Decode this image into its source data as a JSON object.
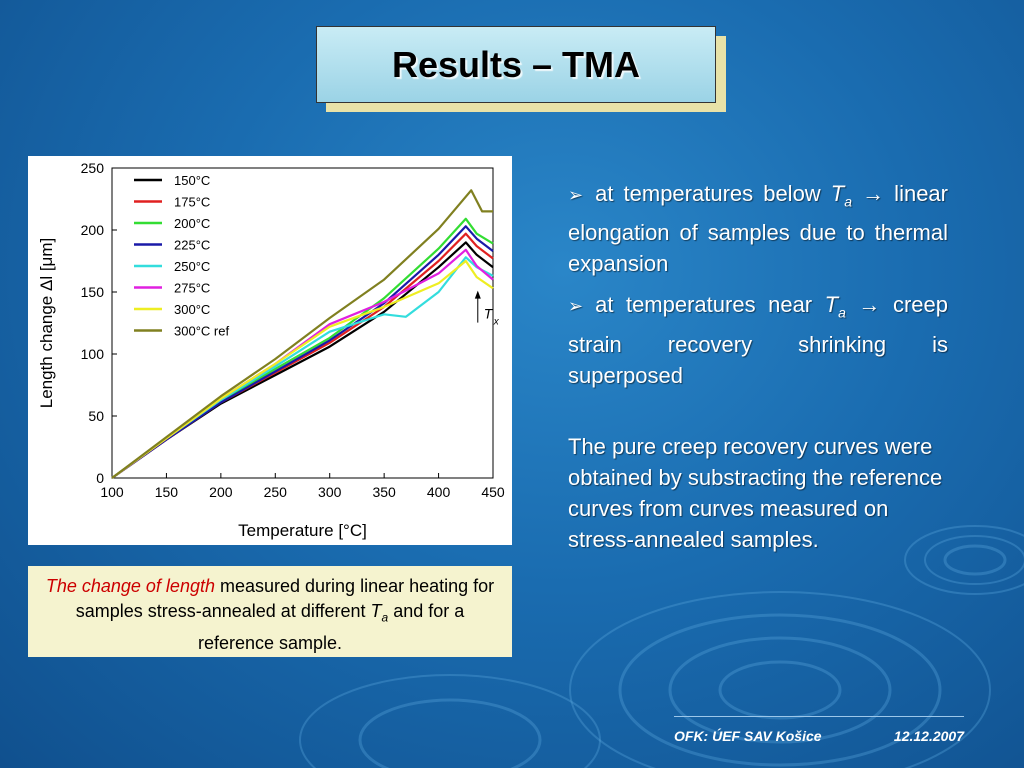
{
  "slide": {
    "title": "Results – TMA"
  },
  "caption": {
    "highlight": "The change of length",
    "rest1": " measured during linear heating for samples stress-annealed at different ",
    "ta_T": "T",
    "ta_sub": "a",
    "rest2": " and for a reference sample."
  },
  "bullets": [
    {
      "marker": "➢",
      "before": "at temperatures below ",
      "T": "T",
      "sub": "a",
      "after": " → linear elongation of samples due to thermal expansion"
    },
    {
      "marker": "➢",
      "before": "at temperatures near ",
      "T": "T",
      "sub": "a",
      "after": " → creep strain recovery shrinking is superposed"
    }
  ],
  "paragraph": "The pure creep recovery curves were obtained by substracting the reference curves from curves measured on stress-annealed samples.",
  "footer": {
    "org": "OFK: ÚEF SAV Košice",
    "date": "12.12.2007"
  },
  "colors": {
    "title_bg": "#b7e3f0",
    "caption_bg": "#f5f3cf",
    "caption_highlight": "#cc0000"
  },
  "chart_data": {
    "type": "line",
    "xlabel": "Temperature [°C]",
    "ylabel": "Length change Δl [μm]",
    "xlim": [
      100,
      450
    ],
    "ylim": [
      0,
      250
    ],
    "xticks": [
      100,
      150,
      200,
      250,
      300,
      350,
      400,
      450
    ],
    "yticks": [
      0,
      50,
      100,
      150,
      200,
      250
    ],
    "legend_position": "top-left",
    "annotation": {
      "label": "T",
      "sub": "x",
      "x": 425,
      "y": 135
    },
    "series": [
      {
        "name": "150°C",
        "color": "#000000",
        "x": [
          100,
          150,
          200,
          250,
          300,
          350,
          400,
          425,
          435,
          450
        ],
        "y": [
          0,
          31,
          60,
          83,
          106,
          134,
          170,
          190,
          180,
          170
        ]
      },
      {
        "name": "175°C",
        "color": "#e02020",
        "x": [
          100,
          150,
          200,
          250,
          300,
          350,
          400,
          425,
          435,
          450
        ],
        "y": [
          0,
          31,
          61,
          85,
          109,
          138,
          175,
          197,
          187,
          177
        ]
      },
      {
        "name": "200°C",
        "color": "#33dd33",
        "x": [
          100,
          150,
          200,
          250,
          300,
          350,
          400,
          425,
          435,
          450
        ],
        "y": [
          0,
          32,
          62,
          88,
          113,
          145,
          185,
          209,
          197,
          189
        ]
      },
      {
        "name": "225°C",
        "color": "#1a1aa8",
        "x": [
          100,
          150,
          200,
          250,
          300,
          350,
          400,
          425,
          435,
          450
        ],
        "y": [
          0,
          31,
          61,
          86,
          111,
          141,
          180,
          203,
          193,
          183
        ]
      },
      {
        "name": "250°C",
        "color": "#33dddd",
        "x": [
          100,
          150,
          200,
          250,
          300,
          350,
          370,
          400,
          425,
          435,
          450
        ],
        "y": [
          0,
          32,
          63,
          90,
          118,
          132,
          130,
          150,
          178,
          170,
          163
        ]
      },
      {
        "name": "275°C",
        "color": "#e020e0",
        "x": [
          100,
          150,
          200,
          250,
          300,
          350,
          400,
          425,
          435,
          450
        ],
        "y": [
          0,
          32,
          64,
          92,
          124,
          142,
          165,
          184,
          171,
          160
        ]
      },
      {
        "name": "300°C",
        "color": "#eeee22",
        "x": [
          100,
          150,
          200,
          250,
          300,
          350,
          400,
          425,
          435,
          450
        ],
        "y": [
          0,
          32,
          64,
          92,
          122,
          138,
          157,
          175,
          162,
          153
        ]
      },
      {
        "name": "300°C ref",
        "color": "#808020",
        "x": [
          100,
          150,
          200,
          250,
          300,
          350,
          400,
          430,
          440,
          450
        ],
        "y": [
          0,
          33,
          66,
          96,
          129,
          160,
          201,
          232,
          215,
          215
        ]
      }
    ]
  }
}
